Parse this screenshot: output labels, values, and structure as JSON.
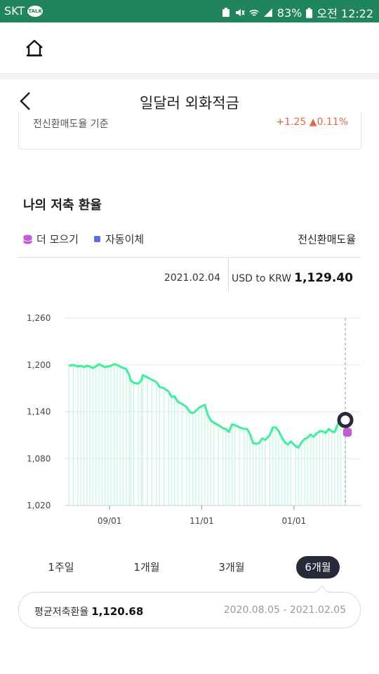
{
  "status_bar": {
    "carrier": "SKT",
    "talk_badge": "TALK",
    "battery": "83%",
    "time": "오전 12:22"
  },
  "nav": {
    "title": "일달러 외화적금"
  },
  "card_remnant": {
    "left_text": "전신환매도율 기준",
    "right_text": "+1.25 ▲0.11%"
  },
  "section": {
    "title": "나의 저축 환율",
    "legend_more": "더 모으기",
    "legend_auto": "자동이체",
    "rate_type": "전신환매도율"
  },
  "info": {
    "date": "2021.02.04",
    "pair": "USD to KRW",
    "value": "1,129.40"
  },
  "colors": {
    "line": "#3ef09a",
    "bar": "#c9f7e2",
    "grid": "#e6e6e6",
    "marker_dark": "#262a3a",
    "coin": "#c35bd6",
    "auto_dot": "#5a6fe0"
  },
  "chart_data": {
    "type": "line",
    "y_ticks": [
      "1,260",
      "1,200",
      "1,140",
      "1,080",
      "1,020"
    ],
    "y_tick_values": [
      1260,
      1200,
      1140,
      1080,
      1020
    ],
    "ylim": [
      1020,
      1260
    ],
    "x_ticks": [
      "09/01",
      "11/01",
      "01/01"
    ],
    "x_tick_positions": [
      27,
      88,
      149
    ],
    "x_range": [
      0,
      183
    ],
    "series": [
      {
        "points": [
          [
            0,
            1199
          ],
          [
            3,
            1200
          ],
          [
            6,
            1198
          ],
          [
            8,
            1199
          ],
          [
            10,
            1197
          ],
          [
            12,
            1199
          ],
          [
            14,
            1198
          ],
          [
            16,
            1196
          ],
          [
            18,
            1198
          ],
          [
            20,
            1201
          ],
          [
            22,
            1199
          ],
          [
            24,
            1197
          ],
          [
            26,
            1198
          ],
          [
            28,
            1199
          ],
          [
            30,
            1201
          ],
          [
            32,
            1200
          ],
          [
            34,
            1198
          ],
          [
            36,
            1196
          ],
          [
            38,
            1195
          ],
          [
            40,
            1187
          ],
          [
            41,
            1180
          ],
          [
            43,
            1177
          ],
          [
            46,
            1176
          ],
          [
            48,
            1180
          ],
          [
            49,
            1187
          ],
          [
            52,
            1184
          ],
          [
            55,
            1181
          ],
          [
            58,
            1178
          ],
          [
            60,
            1172
          ],
          [
            63,
            1170
          ],
          [
            66,
            1166
          ],
          [
            68,
            1159
          ],
          [
            70,
            1160
          ],
          [
            72,
            1153
          ],
          [
            75,
            1150
          ],
          [
            78,
            1146
          ],
          [
            80,
            1140
          ],
          [
            82,
            1138
          ],
          [
            84,
            1141
          ],
          [
            86,
            1145
          ],
          [
            88,
            1147
          ],
          [
            90,
            1149
          ],
          [
            92,
            1136
          ],
          [
            94,
            1129
          ],
          [
            96,
            1126
          ],
          [
            99,
            1123
          ],
          [
            102,
            1119
          ],
          [
            104,
            1118
          ],
          [
            106,
            1114
          ],
          [
            108,
            1124
          ],
          [
            110,
            1123
          ],
          [
            113,
            1120
          ],
          [
            116,
            1118
          ],
          [
            118,
            1118
          ],
          [
            120,
            1111
          ],
          [
            122,
            1100
          ],
          [
            124,
            1099
          ],
          [
            126,
            1100
          ],
          [
            128,
            1106
          ],
          [
            130,
            1104
          ],
          [
            133,
            1110
          ],
          [
            135,
            1120
          ],
          [
            137,
            1120
          ],
          [
            139,
            1115
          ],
          [
            141,
            1107
          ],
          [
            143,
            1101
          ],
          [
            145,
            1098
          ],
          [
            147,
            1102
          ],
          [
            150,
            1096
          ],
          [
            152,
            1094
          ],
          [
            154,
            1101
          ],
          [
            156,
            1105
          ],
          [
            158,
            1107
          ],
          [
            160,
            1111
          ],
          [
            162,
            1108
          ],
          [
            164,
            1112
          ],
          [
            166,
            1115
          ],
          [
            168,
            1115
          ],
          [
            170,
            1113
          ],
          [
            172,
            1118
          ],
          [
            174,
            1115
          ],
          [
            176,
            1114
          ],
          [
            178,
            1124
          ],
          [
            180,
            1126
          ],
          [
            183,
            1129
          ]
        ]
      }
    ],
    "marker_value": 1129.4
  },
  "periods": [
    "1주일",
    "1개월",
    "3개월",
    "6개월"
  ],
  "active_period": "6개월",
  "average": {
    "label": "평균저축환율",
    "value": "1,120.68",
    "range": "2020.08.05 - 2021.02.05"
  }
}
